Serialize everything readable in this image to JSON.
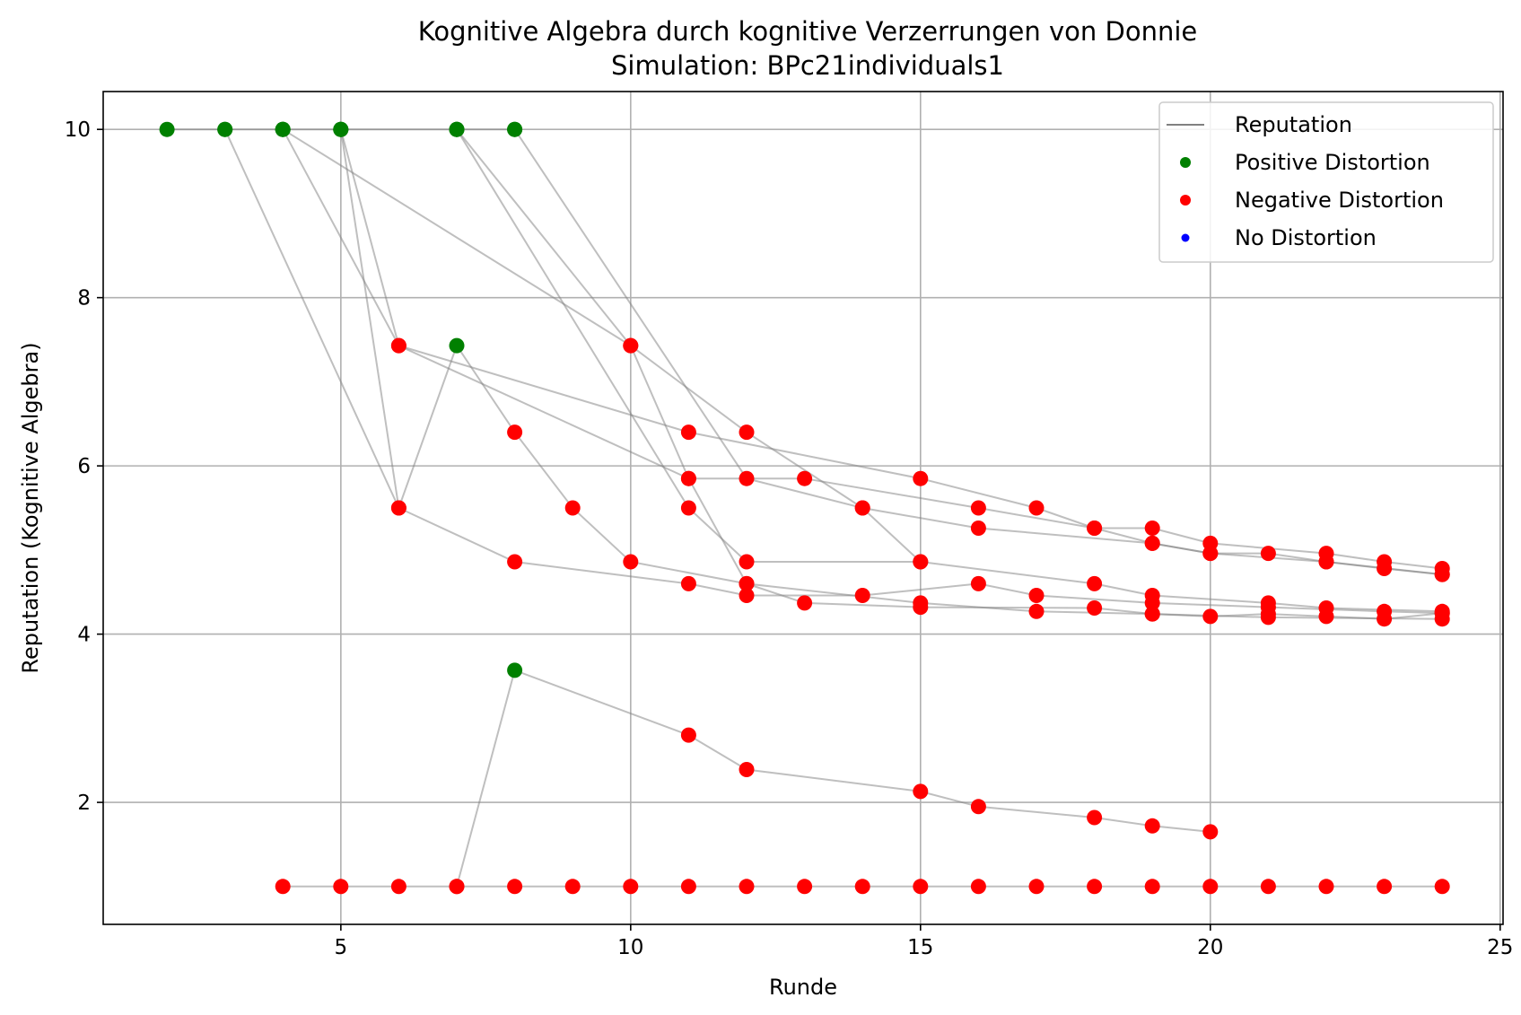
{
  "chart_data": {
    "type": "scatter",
    "title": "Kognitive Algebra durch kognitive Verzerrungen von Donnie",
    "subtitle": "Simulation: BPc21individuals1",
    "xlabel": "Runde",
    "ylabel": "Reputation (Kognitive Algebra)",
    "xlim": [
      0.9,
      25.05
    ],
    "ylim": [
      0.55,
      10.45
    ],
    "xticks": [
      5,
      10,
      15,
      20,
      25
    ],
    "yticks": [
      2,
      4,
      6,
      8,
      10
    ],
    "grid": true,
    "legend_position": "top-right",
    "legend": [
      {
        "label": "Reputation",
        "kind": "line",
        "color": "#808080"
      },
      {
        "label": "Positive Distortion",
        "kind": "marker",
        "color": "#008000"
      },
      {
        "label": "Negative Distortion",
        "kind": "marker",
        "color": "#ff0000"
      },
      {
        "label": "No Distortion",
        "kind": "marker",
        "color": "#0000ff"
      }
    ],
    "colors": {
      "line": "#808080",
      "positive": "#008000",
      "negative": "#ff0000",
      "neutral": "#0000ff"
    },
    "series": [
      {
        "points": [
          [
            2,
            10,
            "positive"
          ],
          [
            3,
            10,
            "positive"
          ],
          [
            4,
            10,
            "positive"
          ],
          [
            5,
            10,
            "positive"
          ],
          [
            7,
            10,
            "positive"
          ],
          [
            8,
            10,
            "positive"
          ]
        ]
      },
      {
        "points": [
          [
            3,
            10,
            "positive"
          ],
          [
            6,
            5.5,
            "negative"
          ],
          [
            7,
            7.43,
            "positive"
          ],
          [
            8,
            6.4,
            "negative"
          ],
          [
            9,
            5.5,
            "negative"
          ],
          [
            10,
            4.86,
            "negative"
          ],
          [
            12,
            4.6,
            "negative"
          ],
          [
            13,
            4.37,
            "negative"
          ],
          [
            15,
            4.32,
            "negative"
          ],
          [
            18,
            4.31,
            "negative"
          ],
          [
            19,
            4.24,
            "negative"
          ],
          [
            21,
            4.2,
            "negative"
          ],
          [
            24,
            4.18,
            "negative"
          ]
        ]
      },
      {
        "points": [
          [
            4,
            10,
            "positive"
          ],
          [
            6,
            7.43,
            "negative"
          ],
          [
            11,
            6.4,
            "negative"
          ],
          [
            15,
            5.85,
            "negative"
          ],
          [
            17,
            5.5,
            "negative"
          ],
          [
            18,
            5.26,
            "negative"
          ],
          [
            19,
            5.08,
            "negative"
          ],
          [
            20,
            4.96,
            "negative"
          ],
          [
            22,
            4.86,
            "negative"
          ],
          [
            24,
            4.71,
            "negative"
          ]
        ]
      },
      {
        "points": [
          [
            4,
            10,
            "positive"
          ],
          [
            10,
            7.43,
            "negative"
          ],
          [
            12,
            6.4,
            "negative"
          ],
          [
            14,
            5.5,
            "negative"
          ],
          [
            16,
            5.26,
            "negative"
          ],
          [
            19,
            5.08,
            "negative"
          ],
          [
            20,
            4.96,
            "negative"
          ],
          [
            21,
            4.96,
            "negative"
          ],
          [
            22,
            4.86,
            "negative"
          ],
          [
            23,
            4.78,
            "negative"
          ],
          [
            24,
            4.71,
            "negative"
          ]
        ]
      },
      {
        "points": [
          [
            5,
            10,
            "positive"
          ],
          [
            6,
            5.5,
            "negative"
          ],
          [
            8,
            4.86,
            "negative"
          ],
          [
            11,
            4.6,
            "negative"
          ],
          [
            12,
            4.46,
            "negative"
          ],
          [
            14,
            4.46,
            "negative"
          ],
          [
            16,
            4.6,
            "negative"
          ],
          [
            17,
            4.46,
            "negative"
          ],
          [
            19,
            4.37,
            "negative"
          ],
          [
            21,
            4.32,
            "negative"
          ],
          [
            23,
            4.27,
            "negative"
          ],
          [
            24,
            4.25,
            "negative"
          ]
        ]
      },
      {
        "points": [
          [
            7,
            10,
            "positive"
          ],
          [
            10,
            7.43,
            "negative"
          ],
          [
            11,
            5.85,
            "negative"
          ],
          [
            13,
            5.85,
            "negative"
          ],
          [
            16,
            5.5,
            "negative"
          ],
          [
            18,
            5.26,
            "negative"
          ],
          [
            19,
            5.26,
            "negative"
          ],
          [
            20,
            5.08,
            "negative"
          ],
          [
            22,
            4.96,
            "negative"
          ],
          [
            23,
            4.86,
            "negative"
          ],
          [
            24,
            4.78,
            "negative"
          ]
        ]
      },
      {
        "points": [
          [
            7,
            10,
            "positive"
          ],
          [
            11,
            5.5,
            "negative"
          ],
          [
            12,
            4.86,
            "negative"
          ],
          [
            15,
            4.86,
            "negative"
          ],
          [
            18,
            4.6,
            "negative"
          ],
          [
            19,
            4.46,
            "negative"
          ],
          [
            21,
            4.37,
            "negative"
          ],
          [
            22,
            4.31,
            "negative"
          ],
          [
            24,
            4.27,
            "negative"
          ]
        ]
      },
      {
        "points": [
          [
            8,
            10,
            "positive"
          ],
          [
            12,
            5.85,
            "negative"
          ],
          [
            14,
            5.5,
            "negative"
          ],
          [
            15,
            4.86,
            "negative"
          ]
        ]
      },
      {
        "points": [
          [
            5,
            10,
            "positive"
          ],
          [
            6,
            7.43,
            "negative"
          ],
          [
            11,
            5.85,
            "negative"
          ],
          [
            12,
            4.6,
            "negative"
          ],
          [
            15,
            4.37,
            "negative"
          ],
          [
            17,
            4.27,
            "negative"
          ],
          [
            19,
            4.24,
            "negative"
          ],
          [
            20,
            4.21,
            "negative"
          ],
          [
            21,
            4.24,
            "negative"
          ],
          [
            22,
            4.21,
            "negative"
          ],
          [
            23,
            4.18,
            "negative"
          ],
          [
            24,
            4.25,
            "negative"
          ]
        ]
      },
      {
        "points": [
          [
            7,
            1,
            "negative"
          ],
          [
            8,
            3.57,
            "positive"
          ],
          [
            11,
            2.8,
            "negative"
          ],
          [
            12,
            2.39,
            "negative"
          ],
          [
            15,
            2.13,
            "negative"
          ],
          [
            16,
            1.95,
            "negative"
          ],
          [
            18,
            1.82,
            "negative"
          ],
          [
            19,
            1.72,
            "negative"
          ],
          [
            20,
            1.65,
            "negative"
          ]
        ]
      },
      {
        "points": [
          [
            4,
            1,
            "negative"
          ],
          [
            5,
            1,
            "negative"
          ],
          [
            6,
            1,
            "negative"
          ],
          [
            7,
            1,
            "negative"
          ],
          [
            8,
            1,
            "negative"
          ],
          [
            9,
            1,
            "negative"
          ],
          [
            10,
            1,
            "negative"
          ],
          [
            11,
            1,
            "negative"
          ],
          [
            12,
            1,
            "negative"
          ],
          [
            13,
            1,
            "negative"
          ],
          [
            14,
            1,
            "negative"
          ],
          [
            15,
            1,
            "negative"
          ],
          [
            16,
            1,
            "negative"
          ],
          [
            17,
            1,
            "negative"
          ],
          [
            18,
            1,
            "negative"
          ],
          [
            19,
            1,
            "negative"
          ],
          [
            20,
            1,
            "negative"
          ],
          [
            21,
            1,
            "negative"
          ],
          [
            22,
            1,
            "negative"
          ],
          [
            23,
            1,
            "negative"
          ],
          [
            24,
            1,
            "negative"
          ]
        ]
      }
    ]
  }
}
